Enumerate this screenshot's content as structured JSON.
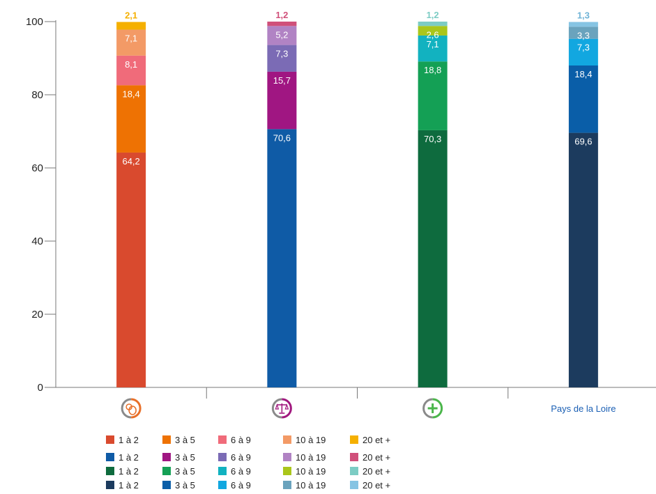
{
  "chart_data": {
    "type": "bar",
    "stacked": true,
    "ylim": [
      0,
      100
    ],
    "yticks": [
      0,
      20,
      40,
      60,
      80,
      100
    ],
    "categories": [
      {
        "icon": "commerce-icon",
        "label": "",
        "color": "#e8702a"
      },
      {
        "icon": "justice-scale-icon",
        "label": "",
        "color": "#a1197f"
      },
      {
        "icon": "health-plus-icon",
        "label": "",
        "color": "#4bb64b"
      },
      {
        "icon": "",
        "label": "Pays de la Loire",
        "color": "#1a5fb4"
      }
    ],
    "segment_names": [
      "1 à 2",
      "3 à 5",
      "6 à 9",
      "10 à 19",
      "20 et +"
    ],
    "values": [
      [
        64.2,
        18.4,
        8.1,
        7.1,
        2.1
      ],
      [
        70.6,
        15.7,
        7.3,
        5.2,
        1.2
      ],
      [
        70.3,
        18.8,
        7.1,
        2.6,
        1.2
      ],
      [
        69.6,
        18.4,
        7.3,
        3.3,
        1.3
      ]
    ],
    "labels": [
      [
        "64,2",
        "18,4",
        "8,1",
        "7,1",
        "2,1"
      ],
      [
        "70,6",
        "15,7",
        "7,3",
        "5,2",
        "1,2"
      ],
      [
        "70,3",
        "18,8",
        "7,1",
        "2,6",
        "1,2"
      ],
      [
        "69,6",
        "18,4",
        "7,3",
        "3,3",
        "1,3"
      ]
    ],
    "colors": [
      [
        "#d94a2e",
        "#ee7203",
        "#f06b7a",
        "#f39a66",
        "#f5b000"
      ],
      [
        "#0f5ba6",
        "#a01682",
        "#7b6bb5",
        "#b183c4",
        "#d0507a"
      ],
      [
        "#0e6b3e",
        "#14a055",
        "#12b2c0",
        "#aac61b",
        "#7cccc4"
      ],
      [
        "#1c3b5e",
        "#0a5ea8",
        "#12a7e0",
        "#6aa3bd",
        "#86c4e3"
      ]
    ],
    "top_label_colors": [
      "#f5b000",
      "#d0507a",
      "#7cccc4",
      "#6fb3d6"
    ],
    "legend": [
      [
        "1 à 2",
        "3 à 5",
        "6 à 9",
        "10 à 19",
        "20 et +"
      ],
      [
        "1 à 2",
        "3 à 5",
        "6 à 9",
        "10 à 19",
        "20 et +"
      ],
      [
        "1 à 2",
        "3 à 5",
        "6 à 9",
        "10 à 19",
        "20 et +"
      ],
      [
        "1 à 2",
        "3 à 5",
        "6 à 9",
        "10 à 19",
        "20 et +"
      ]
    ]
  }
}
